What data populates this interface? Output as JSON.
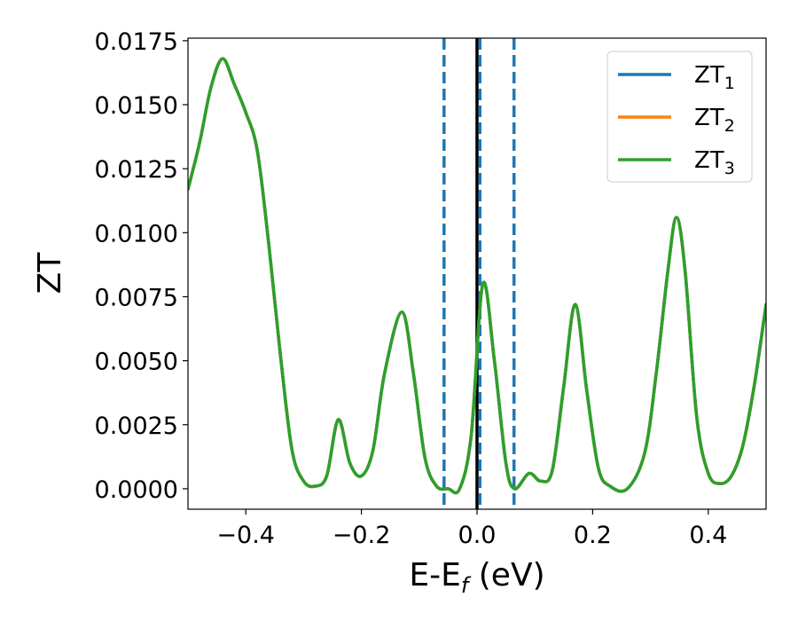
{
  "chart_data": {
    "type": "line",
    "xlabel": "E-E_f (eV)",
    "xlabel_main": "E-E",
    "xlabel_sub": "f",
    "xlabel_unit": " (eV)",
    "ylabel": "ZT",
    "xlim": [
      -0.5,
      0.5
    ],
    "ylim": [
      -0.0008,
      0.0176
    ],
    "x_ticks": [
      -0.4,
      -0.2,
      0.0,
      0.2,
      0.4
    ],
    "x_tick_labels": [
      "−0.4",
      "−0.2",
      "0.0",
      "0.2",
      "0.4"
    ],
    "y_ticks": [
      0.0,
      0.0025,
      0.005,
      0.0075,
      0.01,
      0.0125,
      0.015,
      0.0175
    ],
    "y_tick_labels": [
      "0.0000",
      "0.0025",
      "0.0050",
      "0.0075",
      "0.0100",
      "0.0125",
      "0.0150",
      "0.0175"
    ],
    "grid": false,
    "legend_position": "top-right",
    "vlines": [
      {
        "x": 0.0,
        "color": "#000000",
        "style": "solid"
      },
      {
        "x": -0.057,
        "color": "#1f77b4",
        "style": "dashed"
      },
      {
        "x": 0.005,
        "color": "#1f77b4",
        "style": "dashed"
      },
      {
        "x": 0.064,
        "color": "#1f77b4",
        "style": "dashed"
      }
    ],
    "series": [
      {
        "name": "ZT_1",
        "label_main": "ZT",
        "label_sub": "1",
        "color": "#1f77b4",
        "x": [
          -0.5,
          -0.48,
          -0.46,
          -0.44,
          -0.42,
          -0.4,
          -0.38,
          -0.36,
          -0.34,
          -0.32,
          -0.3,
          -0.28,
          -0.26,
          -0.24,
          -0.22,
          -0.2,
          -0.18,
          -0.16,
          -0.13,
          -0.11,
          -0.09,
          -0.07,
          -0.05,
          -0.03,
          -0.01,
          0.01,
          0.03,
          0.05,
          0.065,
          0.09,
          0.11,
          0.13,
          0.15,
          0.17,
          0.19,
          0.21,
          0.23,
          0.26,
          0.29,
          0.31,
          0.33,
          0.345,
          0.36,
          0.38,
          0.4,
          0.42,
          0.44,
          0.46,
          0.48,
          0.5
        ],
        "y": [
          0.0117,
          0.0135,
          0.0157,
          0.0168,
          0.0158,
          0.0147,
          0.0132,
          0.0095,
          0.0052,
          0.0015,
          0.0003,
          0.0001,
          0.0005,
          0.0027,
          0.001,
          0.0005,
          0.0015,
          0.0045,
          0.0069,
          0.0045,
          0.0012,
          0.0001,
          0.0,
          0.0,
          0.0021,
          0.008,
          0.005,
          0.001,
          0.0,
          0.0006,
          0.0003,
          0.0007,
          0.004,
          0.0072,
          0.0038,
          0.0008,
          0.0001,
          0.0,
          0.0014,
          0.0045,
          0.0085,
          0.0106,
          0.0085,
          0.0028,
          0.0006,
          0.0002,
          0.0005,
          0.0017,
          0.0041,
          0.0072
        ]
      },
      {
        "name": "ZT_2",
        "label_main": "ZT",
        "label_sub": "2",
        "color": "#ff7f0e",
        "x": [
          -0.5,
          -0.48,
          -0.46,
          -0.44,
          -0.42,
          -0.4,
          -0.38,
          -0.36,
          -0.34,
          -0.32,
          -0.3,
          -0.28,
          -0.26,
          -0.24,
          -0.22,
          -0.2,
          -0.18,
          -0.16,
          -0.13,
          -0.11,
          -0.09,
          -0.07,
          -0.05,
          -0.03,
          -0.01,
          0.01,
          0.03,
          0.05,
          0.065,
          0.09,
          0.11,
          0.13,
          0.15,
          0.17,
          0.19,
          0.21,
          0.23,
          0.26,
          0.29,
          0.31,
          0.33,
          0.345,
          0.36,
          0.38,
          0.4,
          0.42,
          0.44,
          0.46,
          0.48,
          0.5
        ],
        "y": [
          0.0117,
          0.0135,
          0.0157,
          0.0168,
          0.0158,
          0.0147,
          0.0132,
          0.0095,
          0.0052,
          0.0015,
          0.0003,
          0.0001,
          0.0005,
          0.0027,
          0.001,
          0.0005,
          0.0015,
          0.0045,
          0.0069,
          0.0045,
          0.0012,
          0.0001,
          0.0,
          0.0,
          0.0021,
          0.008,
          0.005,
          0.001,
          0.0,
          0.0006,
          0.0003,
          0.0007,
          0.004,
          0.0072,
          0.0038,
          0.0008,
          0.0001,
          0.0,
          0.0014,
          0.0045,
          0.0085,
          0.0106,
          0.0085,
          0.0028,
          0.0006,
          0.0002,
          0.0005,
          0.0017,
          0.0041,
          0.0072
        ]
      },
      {
        "name": "ZT_3",
        "label_main": "ZT",
        "label_sub": "3",
        "color": "#2ca02c",
        "x": [
          -0.5,
          -0.48,
          -0.46,
          -0.44,
          -0.42,
          -0.4,
          -0.38,
          -0.36,
          -0.34,
          -0.32,
          -0.3,
          -0.28,
          -0.26,
          -0.24,
          -0.22,
          -0.2,
          -0.18,
          -0.16,
          -0.13,
          -0.11,
          -0.09,
          -0.07,
          -0.05,
          -0.03,
          -0.01,
          0.01,
          0.03,
          0.05,
          0.065,
          0.09,
          0.11,
          0.13,
          0.15,
          0.17,
          0.19,
          0.21,
          0.23,
          0.26,
          0.29,
          0.31,
          0.33,
          0.345,
          0.36,
          0.38,
          0.4,
          0.42,
          0.44,
          0.46,
          0.48,
          0.5
        ],
        "y": [
          0.0117,
          0.0135,
          0.0157,
          0.0168,
          0.0158,
          0.0147,
          0.0132,
          0.0095,
          0.0052,
          0.0015,
          0.0003,
          0.0001,
          0.0005,
          0.0027,
          0.001,
          0.0005,
          0.0015,
          0.0045,
          0.0069,
          0.0045,
          0.0012,
          0.0001,
          0.0,
          0.0,
          0.0021,
          0.008,
          0.005,
          0.001,
          0.0,
          0.0006,
          0.0003,
          0.0007,
          0.004,
          0.0072,
          0.0038,
          0.0008,
          0.0001,
          0.0,
          0.0014,
          0.0045,
          0.0085,
          0.0106,
          0.0085,
          0.0028,
          0.0006,
          0.0002,
          0.0005,
          0.0017,
          0.0041,
          0.0072
        ]
      }
    ]
  }
}
